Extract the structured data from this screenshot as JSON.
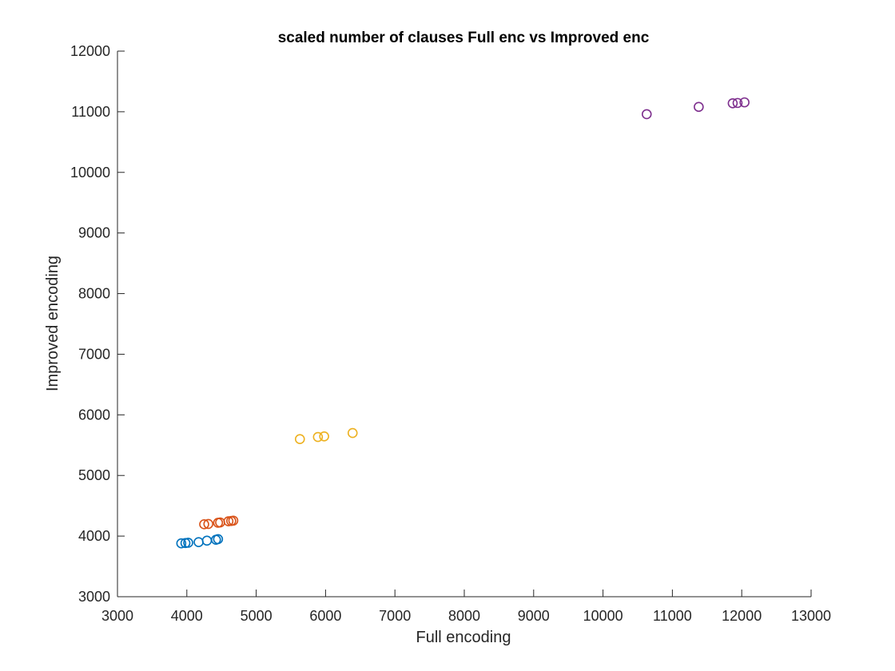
{
  "chart_data": {
    "type": "scatter",
    "title": "scaled number of clauses Full enc vs Improved enc",
    "xlabel": "Full encoding",
    "ylabel": "Improved encoding",
    "xlim": [
      3000,
      13000
    ],
    "ylim": [
      3000,
      12000
    ],
    "xticks": [
      "3000",
      "4000",
      "5000",
      "6000",
      "7000",
      "8000",
      "9000",
      "10000",
      "11000",
      "12000",
      "13000"
    ],
    "yticks": [
      "3000",
      "4000",
      "5000",
      "6000",
      "7000",
      "8000",
      "9000",
      "10000",
      "11000",
      "12000"
    ],
    "grid": false,
    "legend": "none",
    "series": [
      {
        "color": "#0072BD",
        "points": [
          [
            3920,
            3880
          ],
          [
            3980,
            3885
          ],
          [
            4020,
            3890
          ],
          [
            4170,
            3900
          ],
          [
            4290,
            3925
          ],
          [
            4420,
            3940
          ],
          [
            4450,
            3950
          ]
        ]
      },
      {
        "color": "#D95319",
        "points": [
          [
            4250,
            4195
          ],
          [
            4310,
            4200
          ],
          [
            4450,
            4220
          ],
          [
            4480,
            4225
          ],
          [
            4600,
            4245
          ],
          [
            4640,
            4250
          ],
          [
            4670,
            4255
          ]
        ]
      },
      {
        "color": "#EDB120",
        "points": [
          [
            5630,
            5600
          ],
          [
            5890,
            5635
          ],
          [
            5980,
            5645
          ],
          [
            6390,
            5700
          ]
        ]
      },
      {
        "color": "#7E2F8E",
        "points": [
          [
            10630,
            10960
          ],
          [
            11380,
            11080
          ],
          [
            11870,
            11140
          ],
          [
            11940,
            11145
          ],
          [
            12040,
            11155
          ]
        ]
      }
    ]
  }
}
